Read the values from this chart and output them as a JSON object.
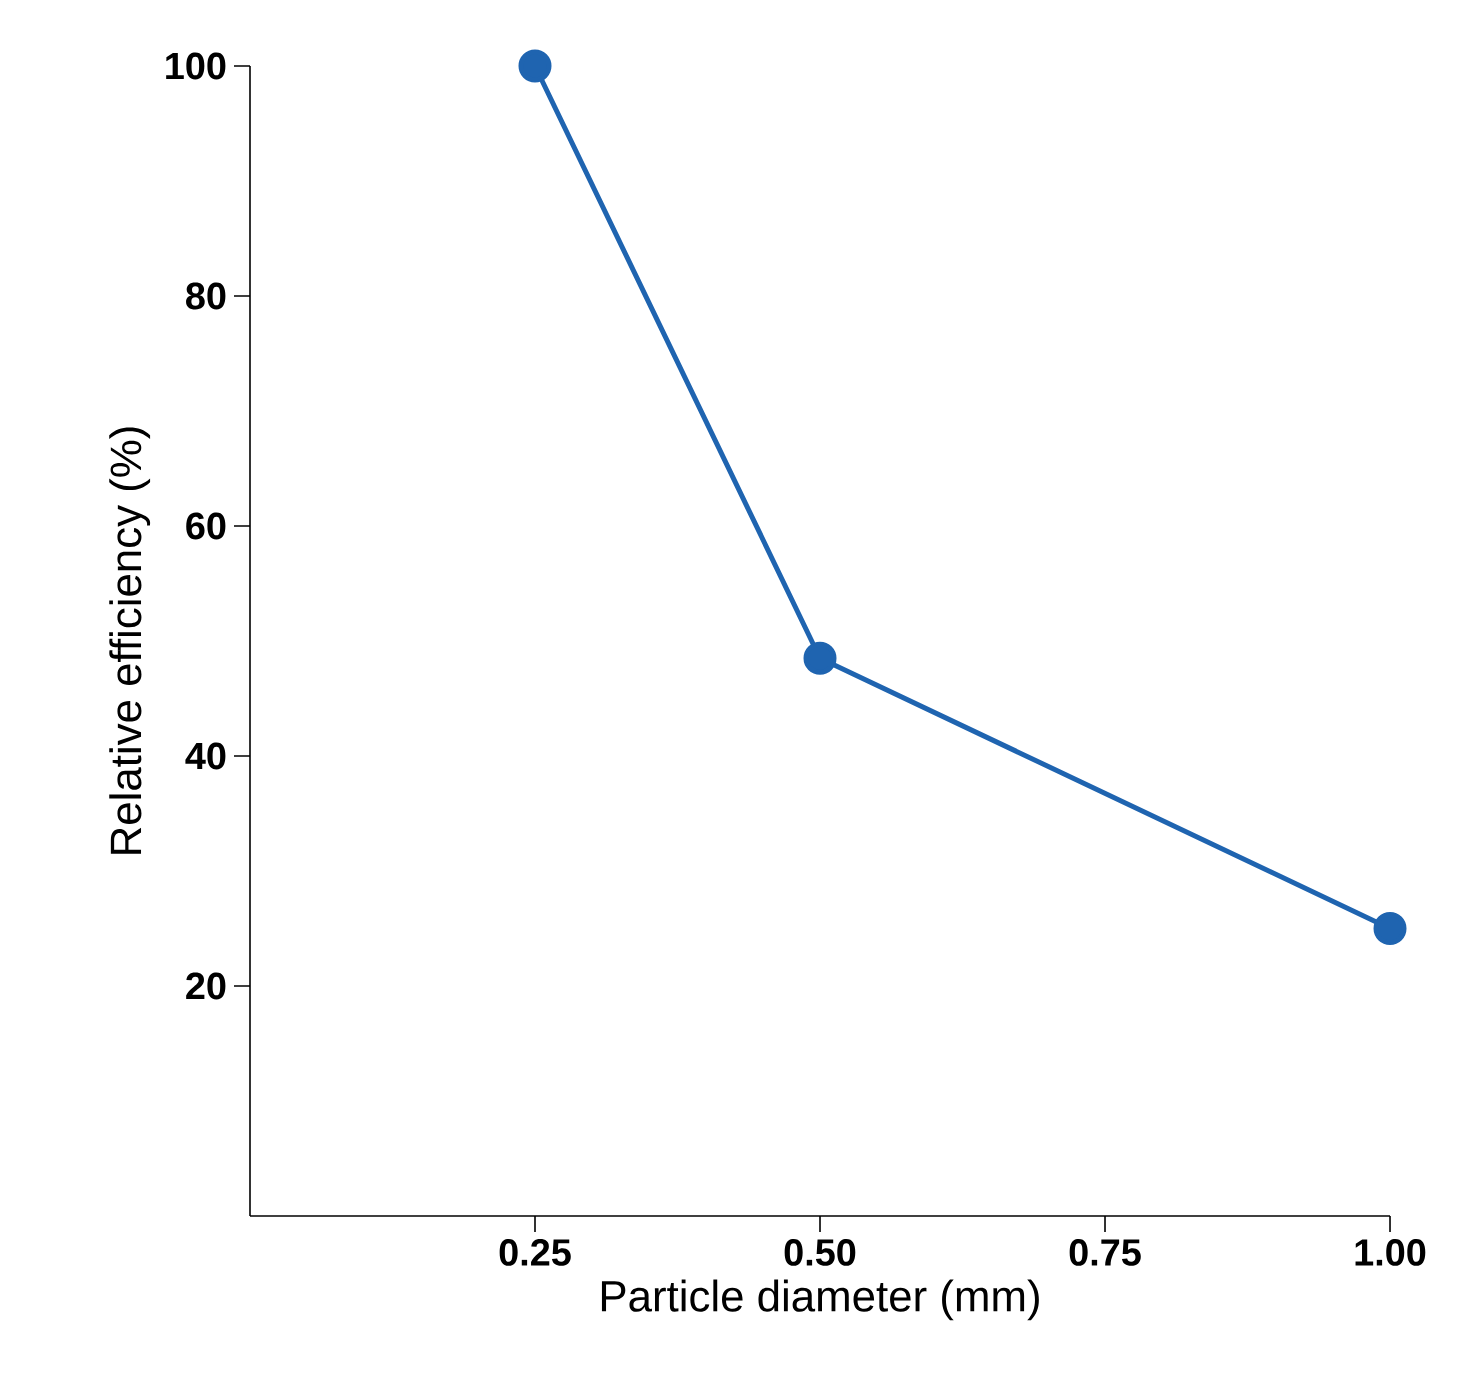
{
  "chart_data": {
    "type": "line",
    "xlabel": "Particle diameter (mm)",
    "ylabel": "Relative efficiency (%)",
    "x": [
      0.25,
      0.5,
      1.0
    ],
    "series": [
      {
        "color": "#1f64b0",
        "values": [
          100,
          48.5,
          25
        ]
      }
    ],
    "xlim": [
      0,
      1.0
    ],
    "ylim": [
      0,
      100
    ],
    "xticks": [
      0.25,
      {
        "value": 0.5,
        "label": "0.50"
      },
      0.75,
      {
        "value": 1.0,
        "label": "1.00"
      }
    ],
    "yticks": [
      {
        "value": 20,
        "label": "20"
      },
      {
        "value": 40,
        "label": "40"
      },
      {
        "value": 60,
        "label": "60"
      },
      {
        "value": 80,
        "label": "80"
      },
      {
        "value": 100,
        "label": "100"
      }
    ],
    "marker": "circle",
    "line_style": "solid",
    "grid": false
  }
}
